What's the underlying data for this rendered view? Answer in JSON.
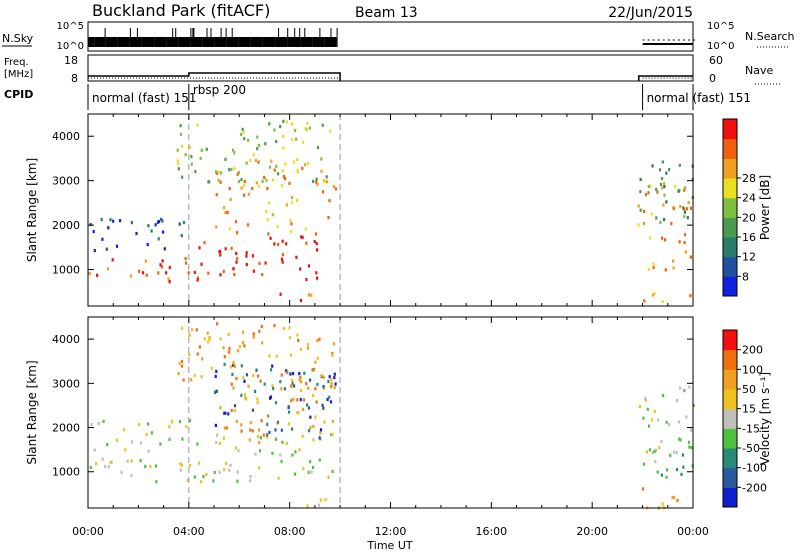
{
  "header": {
    "station": "Buckland Park (fitACF)",
    "beam": "Beam 13",
    "date": "22/Jun/2015"
  },
  "aux_panels": {
    "nsky_label": "N.Sky",
    "nsky_ticks": [
      "10^5",
      "10^0"
    ],
    "nsearch_label": "N.Search",
    "nsearch_ticks": [
      "10^5",
      "10^0"
    ],
    "freq_label_1": "Freq.",
    "freq_label_2": "[MHz]",
    "freq_ticks": [
      "18",
      "8"
    ],
    "nave_label": "Nave",
    "nave_ticks": [
      "60",
      "0"
    ],
    "cpid_label": "CPID",
    "cpid_segments": [
      {
        "label": "normal (fast) 151",
        "start": 0,
        "end": 4
      },
      {
        "label": "rbsp 200",
        "start": 4,
        "end": 10
      },
      {
        "label": "normal (fast) 151",
        "start": 22,
        "end": 24
      }
    ]
  },
  "chart_data": [
    {
      "type": "heatmap",
      "parameter": "Power",
      "ylabel": "Slant Range [km]",
      "xlabel": "Time UT",
      "xlim": [
        0,
        24
      ],
      "ylim": [
        180,
        4500
      ],
      "x_ticks": [
        "00:00",
        "04:00",
        "08:00",
        "12:00",
        "16:00",
        "20:00",
        "00:00"
      ],
      "y_ticks": [
        1000,
        2000,
        3000,
        4000
      ],
      "colorbar": {
        "label": "Power [dB]",
        "ticks": [
          "8",
          "12",
          "16",
          "20",
          "24",
          "28"
        ],
        "colors": [
          "#1020e0",
          "#2050a0",
          "#2a7a6a",
          "#4a9a50",
          "#80c040",
          "#e8e020",
          "#f0a020",
          "#f06010",
          "#f01010"
        ]
      },
      "regions": [
        {
          "t0": 0.0,
          "t1": 4.0,
          "r0": 700,
          "r1": 1300,
          "level": 7
        },
        {
          "t0": 0.0,
          "t1": 4.0,
          "r0": 1400,
          "r1": 2200,
          "level": 1
        },
        {
          "t0": 4.0,
          "t1": 9.8,
          "r0": 800,
          "r1": 1800,
          "level": 8
        },
        {
          "t0": 5.0,
          "t1": 9.8,
          "r0": 1800,
          "r1": 3500,
          "level": 6
        },
        {
          "t0": 3.5,
          "t1": 9.8,
          "r0": 3000,
          "r1": 4400,
          "level": 4
        },
        {
          "t0": 7.5,
          "t1": 9.5,
          "r0": 250,
          "r1": 500,
          "level": 7
        },
        {
          "t0": 21.8,
          "t1": 24.0,
          "r0": 1000,
          "r1": 3000,
          "level": 6
        },
        {
          "t0": 21.8,
          "t1": 24.0,
          "r0": 2000,
          "r1": 3600,
          "level": 3
        },
        {
          "t0": 21.8,
          "t1": 24.0,
          "r0": 200,
          "r1": 500,
          "level": 6
        }
      ]
    },
    {
      "type": "heatmap",
      "parameter": "Velocity",
      "ylabel": "Slant Range [km]",
      "xlabel": "Time UT",
      "xlim": [
        0,
        24
      ],
      "ylim": [
        180,
        4500
      ],
      "x_ticks": [
        "00:00",
        "04:00",
        "08:00",
        "12:00",
        "16:00",
        "20:00",
        "00:00"
      ],
      "y_ticks": [
        1000,
        2000,
        3000,
        4000
      ],
      "colorbar": {
        "label": "Velocity [m s⁻¹]",
        "ticks": [
          "200",
          "100",
          "50",
          "15",
          "-15",
          "-50",
          "-100",
          "-200"
        ],
        "colors": [
          "#1020d0",
          "#2a5a9a",
          "#2a8a7a",
          "#50c040",
          "#c0c0b8",
          "#f0c020",
          "#f0a020",
          "#f07010",
          "#f01010"
        ]
      },
      "regions": [
        {
          "t0": 0.0,
          "t1": 4.0,
          "r0": 800,
          "r1": 1400,
          "level": 4
        },
        {
          "t0": 0.0,
          "t1": 4.0,
          "r0": 1500,
          "r1": 2200,
          "level": 4
        },
        {
          "t0": 4.0,
          "t1": 9.8,
          "r0": 800,
          "r1": 1900,
          "level": 4
        },
        {
          "t0": 5.0,
          "t1": 9.8,
          "r0": 1700,
          "r1": 3200,
          "level": 6
        },
        {
          "t0": 5.0,
          "t1": 9.8,
          "r0": 1800,
          "r1": 3500,
          "level": 1
        },
        {
          "t0": 3.5,
          "t1": 9.8,
          "r0": 3000,
          "r1": 4400,
          "level": 6
        },
        {
          "t0": 7.5,
          "t1": 9.5,
          "r0": 250,
          "r1": 500,
          "level": 4
        },
        {
          "t0": 21.8,
          "t1": 24.0,
          "r0": 1200,
          "r1": 3000,
          "level": 4
        },
        {
          "t0": 21.8,
          "t1": 24.0,
          "r0": 900,
          "r1": 1600,
          "level": 3
        },
        {
          "t0": 21.8,
          "t1": 24.0,
          "r0": 200,
          "r1": 650,
          "level": 6
        }
      ]
    }
  ]
}
